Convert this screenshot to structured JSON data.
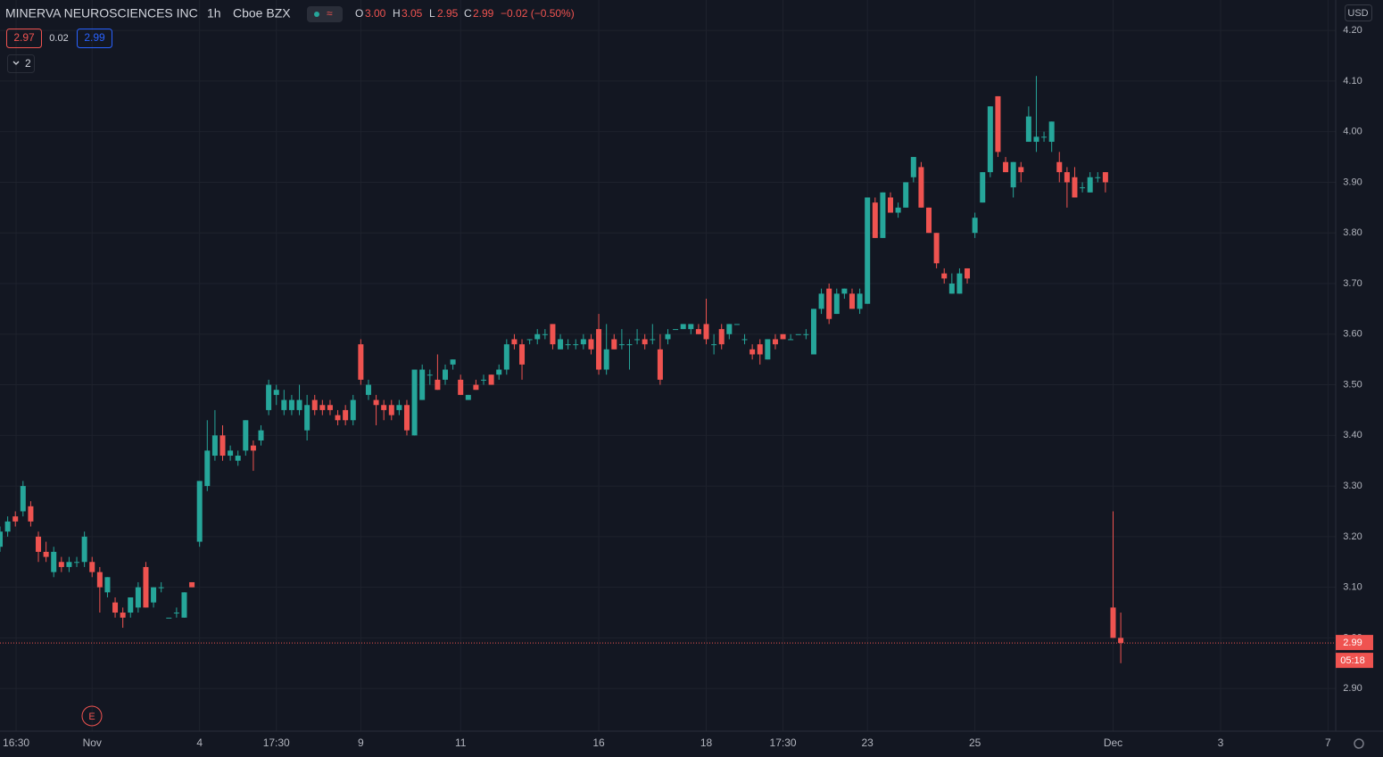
{
  "chart_data": {
    "type": "candlestick",
    "title": "MINERVA NEUROSCIENCES INC",
    "interval": "1h",
    "exchange": "Cboe BZX",
    "currency": "USD",
    "header": {
      "open_label": "O",
      "open": "3.00",
      "high_label": "H",
      "high": "3.05",
      "low_label": "L",
      "low": "2.95",
      "close_label": "C",
      "close": "2.99",
      "change": "−0.02 (−0.50%)"
    },
    "bid": "2.97",
    "spread": "0.02",
    "ask": "2.99",
    "indicators_count": "2",
    "event_marker": "E",
    "countdown": "05:18",
    "up_color": "#26a69a",
    "down_color": "#ef5350",
    "grid": true,
    "ylim": [
      2.8158,
      4.2601
    ],
    "yticks": [
      {
        "value": 2.9,
        "label": "2.90"
      },
      {
        "value": 3.0,
        "label": "3.00"
      },
      {
        "value": 3.1,
        "label": "3.10"
      },
      {
        "value": 3.2,
        "label": "3.20"
      },
      {
        "value": 3.3,
        "label": "3.30"
      },
      {
        "value": 3.4,
        "label": "3.40"
      },
      {
        "value": 3.5,
        "label": "3.50"
      },
      {
        "value": 3.6,
        "label": "3.60"
      },
      {
        "value": 3.7,
        "label": "3.70"
      },
      {
        "value": 3.8,
        "label": "3.80"
      },
      {
        "value": 3.9,
        "label": "3.90"
      },
      {
        "value": 4.0,
        "label": "4.00"
      },
      {
        "value": 4.1,
        "label": "4.10"
      },
      {
        "value": 4.2,
        "label": "4.20"
      }
    ],
    "xlim": [
      0,
      174
    ],
    "xticks": [
      {
        "value": 2.1,
        "label": "16:30"
      },
      {
        "value": 12,
        "label": "Nov"
      },
      {
        "value": 26,
        "label": "4"
      },
      {
        "value": 36,
        "label": "17:30"
      },
      {
        "value": 47,
        "label": "9"
      },
      {
        "value": 60,
        "label": "11"
      },
      {
        "value": 78,
        "label": "16"
      },
      {
        "value": 92,
        "label": "18"
      },
      {
        "value": 102,
        "label": "17:30"
      },
      {
        "value": 113,
        "label": "23"
      },
      {
        "value": 127,
        "label": "25"
      },
      {
        "value": 145,
        "label": "Dec"
      },
      {
        "value": 159,
        "label": "3"
      },
      {
        "value": 173,
        "label": "7"
      }
    ],
    "candles": [
      [
        3.18,
        3.22,
        3.17,
        3.21
      ],
      [
        3.21,
        3.24,
        3.2,
        3.23
      ],
      [
        3.24,
        3.25,
        3.22,
        3.23
      ],
      [
        3.25,
        3.31,
        3.24,
        3.3
      ],
      [
        3.26,
        3.27,
        3.22,
        3.23
      ],
      [
        3.2,
        3.21,
        3.15,
        3.17
      ],
      [
        3.17,
        3.19,
        3.15,
        3.16
      ],
      [
        3.13,
        3.18,
        3.12,
        3.17
      ],
      [
        3.15,
        3.16,
        3.13,
        3.14
      ],
      [
        3.14,
        3.16,
        3.13,
        3.15
      ],
      [
        3.15,
        3.16,
        3.14,
        3.15
      ],
      [
        3.15,
        3.21,
        3.14,
        3.2
      ],
      [
        3.15,
        3.16,
        3.12,
        3.13
      ],
      [
        3.13,
        3.14,
        3.05,
        3.1
      ],
      [
        3.09,
        3.12,
        3.08,
        3.12
      ],
      [
        3.07,
        3.08,
        3.04,
        3.05
      ],
      [
        3.05,
        3.06,
        3.02,
        3.04
      ],
      [
        3.05,
        3.08,
        3.04,
        3.08
      ],
      [
        3.06,
        3.11,
        3.05,
        3.1
      ],
      [
        3.14,
        3.15,
        3.06,
        3.06
      ],
      [
        3.07,
        3.1,
        3.06,
        3.1
      ],
      [
        3.1,
        3.11,
        3.09,
        3.1
      ],
      [
        3.04,
        3.04,
        3.04,
        3.04
      ],
      [
        3.05,
        3.06,
        3.04,
        3.05
      ],
      [
        3.04,
        3.09,
        3.04,
        3.09
      ],
      [
        3.11,
        3.11,
        3.1,
        3.1
      ],
      [
        3.19,
        3.31,
        3.18,
        3.31
      ],
      [
        3.3,
        3.43,
        3.29,
        3.37
      ],
      [
        3.36,
        3.45,
        3.35,
        3.4
      ],
      [
        3.4,
        3.42,
        3.35,
        3.36
      ],
      [
        3.36,
        3.38,
        3.35,
        3.37
      ],
      [
        3.35,
        3.37,
        3.34,
        3.36
      ],
      [
        3.37,
        3.43,
        3.36,
        3.43
      ],
      [
        3.38,
        3.39,
        3.33,
        3.37
      ],
      [
        3.39,
        3.42,
        3.38,
        3.41
      ],
      [
        3.45,
        3.51,
        3.44,
        3.5
      ],
      [
        3.48,
        3.5,
        3.46,
        3.49
      ],
      [
        3.45,
        3.49,
        3.44,
        3.47
      ],
      [
        3.45,
        3.48,
        3.44,
        3.47
      ],
      [
        3.45,
        3.5,
        3.44,
        3.47
      ],
      [
        3.41,
        3.48,
        3.39,
        3.46
      ],
      [
        3.47,
        3.48,
        3.44,
        3.45
      ],
      [
        3.46,
        3.47,
        3.44,
        3.45
      ],
      [
        3.46,
        3.47,
        3.44,
        3.45
      ],
      [
        3.44,
        3.45,
        3.42,
        3.43
      ],
      [
        3.45,
        3.46,
        3.42,
        3.43
      ],
      [
        3.43,
        3.48,
        3.42,
        3.47
      ],
      [
        3.58,
        3.59,
        3.5,
        3.51
      ],
      [
        3.48,
        3.51,
        3.47,
        3.5
      ],
      [
        3.47,
        3.48,
        3.42,
        3.46
      ],
      [
        3.46,
        3.47,
        3.43,
        3.45
      ],
      [
        3.46,
        3.47,
        3.43,
        3.44
      ],
      [
        3.45,
        3.47,
        3.44,
        3.46
      ],
      [
        3.46,
        3.47,
        3.4,
        3.41
      ],
      [
        3.4,
        3.53,
        3.4,
        3.53
      ],
      [
        3.47,
        3.54,
        3.47,
        3.53
      ],
      [
        3.52,
        3.53,
        3.5,
        3.52
      ],
      [
        3.51,
        3.56,
        3.49,
        3.49
      ],
      [
        3.51,
        3.54,
        3.5,
        3.53
      ],
      [
        3.54,
        3.55,
        3.53,
        3.55
      ],
      [
        3.51,
        3.52,
        3.48,
        3.48
      ],
      [
        3.47,
        3.48,
        3.47,
        3.48
      ],
      [
        3.5,
        3.51,
        3.49,
        3.49
      ],
      [
        3.51,
        3.52,
        3.5,
        3.51
      ],
      [
        3.52,
        3.52,
        3.5,
        3.5
      ],
      [
        3.52,
        3.54,
        3.51,
        3.53
      ],
      [
        3.53,
        3.59,
        3.52,
        3.58
      ],
      [
        3.59,
        3.6,
        3.57,
        3.58
      ],
      [
        3.58,
        3.59,
        3.51,
        3.54
      ],
      [
        3.59,
        3.59,
        3.58,
        3.59
      ],
      [
        3.59,
        3.61,
        3.58,
        3.6
      ],
      [
        3.6,
        3.61,
        3.59,
        3.6
      ],
      [
        3.62,
        3.62,
        3.57,
        3.58
      ],
      [
        3.57,
        3.6,
        3.57,
        3.59
      ],
      [
        3.58,
        3.59,
        3.57,
        3.58
      ],
      [
        3.58,
        3.59,
        3.57,
        3.58
      ],
      [
        3.58,
        3.6,
        3.57,
        3.59
      ],
      [
        3.59,
        3.6,
        3.56,
        3.57
      ],
      [
        3.61,
        3.64,
        3.52,
        3.53
      ],
      [
        3.53,
        3.62,
        3.52,
        3.57
      ],
      [
        3.59,
        3.6,
        3.57,
        3.57
      ],
      [
        3.58,
        3.61,
        3.57,
        3.58
      ],
      [
        3.58,
        3.59,
        3.53,
        3.58
      ],
      [
        3.59,
        3.61,
        3.58,
        3.59
      ],
      [
        3.59,
        3.6,
        3.57,
        3.58
      ],
      [
        3.59,
        3.62,
        3.58,
        3.59
      ],
      [
        3.57,
        3.6,
        3.5,
        3.51
      ],
      [
        3.59,
        3.61,
        3.58,
        3.6
      ],
      [
        3.61,
        3.61,
        3.61,
        3.61
      ],
      [
        3.61,
        3.62,
        3.61,
        3.62
      ],
      [
        3.61,
        3.62,
        3.6,
        3.62
      ],
      [
        3.61,
        3.62,
        3.6,
        3.6
      ],
      [
        3.62,
        3.67,
        3.58,
        3.59
      ],
      [
        3.58,
        3.6,
        3.56,
        3.58
      ],
      [
        3.61,
        3.62,
        3.57,
        3.58
      ],
      [
        3.6,
        3.62,
        3.59,
        3.62
      ],
      [
        3.62,
        3.62,
        3.62,
        3.62
      ],
      [
        3.59,
        3.6,
        3.58,
        3.59
      ],
      [
        3.57,
        3.58,
        3.55,
        3.56
      ],
      [
        3.58,
        3.59,
        3.54,
        3.56
      ],
      [
        3.55,
        3.59,
        3.55,
        3.59
      ],
      [
        3.59,
        3.6,
        3.57,
        3.58
      ],
      [
        3.6,
        3.6,
        3.59,
        3.59
      ],
      [
        3.59,
        3.6,
        3.59,
        3.59
      ],
      [
        3.6,
        3.6,
        3.6,
        3.6
      ],
      [
        3.6,
        3.61,
        3.59,
        3.6
      ],
      [
        3.56,
        3.65,
        3.56,
        3.65
      ],
      [
        3.65,
        3.69,
        3.64,
        3.68
      ],
      [
        3.69,
        3.7,
        3.62,
        3.63
      ],
      [
        3.64,
        3.69,
        3.64,
        3.68
      ],
      [
        3.68,
        3.69,
        3.67,
        3.69
      ],
      [
        3.68,
        3.69,
        3.65,
        3.65
      ],
      [
        3.65,
        3.69,
        3.64,
        3.68
      ],
      [
        3.66,
        3.87,
        3.66,
        3.87
      ],
      [
        3.86,
        3.87,
        3.79,
        3.79
      ],
      [
        3.79,
        3.88,
        3.79,
        3.88
      ],
      [
        3.87,
        3.88,
        3.84,
        3.84
      ],
      [
        3.84,
        3.86,
        3.83,
        3.85
      ],
      [
        3.85,
        3.9,
        3.85,
        3.9
      ],
      [
        3.91,
        3.95,
        3.9,
        3.95
      ],
      [
        3.93,
        3.94,
        3.85,
        3.85
      ],
      [
        3.85,
        3.85,
        3.8,
        3.8
      ],
      [
        3.8,
        3.8,
        3.73,
        3.74
      ],
      [
        3.72,
        3.73,
        3.7,
        3.71
      ],
      [
        3.68,
        3.72,
        3.68,
        3.7
      ],
      [
        3.68,
        3.73,
        3.68,
        3.72
      ],
      [
        3.73,
        3.73,
        3.7,
        3.71
      ],
      [
        3.8,
        3.84,
        3.79,
        3.83
      ],
      [
        3.86,
        3.92,
        3.86,
        3.92
      ],
      [
        3.92,
        4.05,
        3.91,
        4.05
      ],
      [
        4.07,
        4.07,
        3.95,
        3.96
      ],
      [
        3.94,
        3.95,
        3.92,
        3.92
      ],
      [
        3.89,
        3.94,
        3.87,
        3.94
      ],
      [
        3.93,
        3.94,
        3.9,
        3.92
      ],
      [
        3.98,
        4.05,
        3.98,
        4.03
      ],
      [
        3.98,
        4.11,
        3.96,
        3.99
      ],
      [
        3.99,
        4.0,
        3.98,
        3.99
      ],
      [
        3.98,
        4.02,
        3.96,
        4.02
      ],
      [
        3.94,
        3.96,
        3.9,
        3.92
      ],
      [
        3.92,
        3.93,
        3.85,
        3.9
      ],
      [
        3.91,
        3.93,
        3.87,
        3.87
      ],
      [
        3.89,
        3.9,
        3.88,
        3.89
      ],
      [
        3.88,
        3.92,
        3.88,
        3.91
      ],
      [
        3.91,
        3.92,
        3.9,
        3.91
      ],
      [
        3.92,
        3.92,
        3.88,
        3.9
      ],
      [
        3.06,
        3.25,
        3.0,
        3.0
      ],
      [
        3.0,
        3.05,
        2.95,
        2.99
      ]
    ]
  }
}
